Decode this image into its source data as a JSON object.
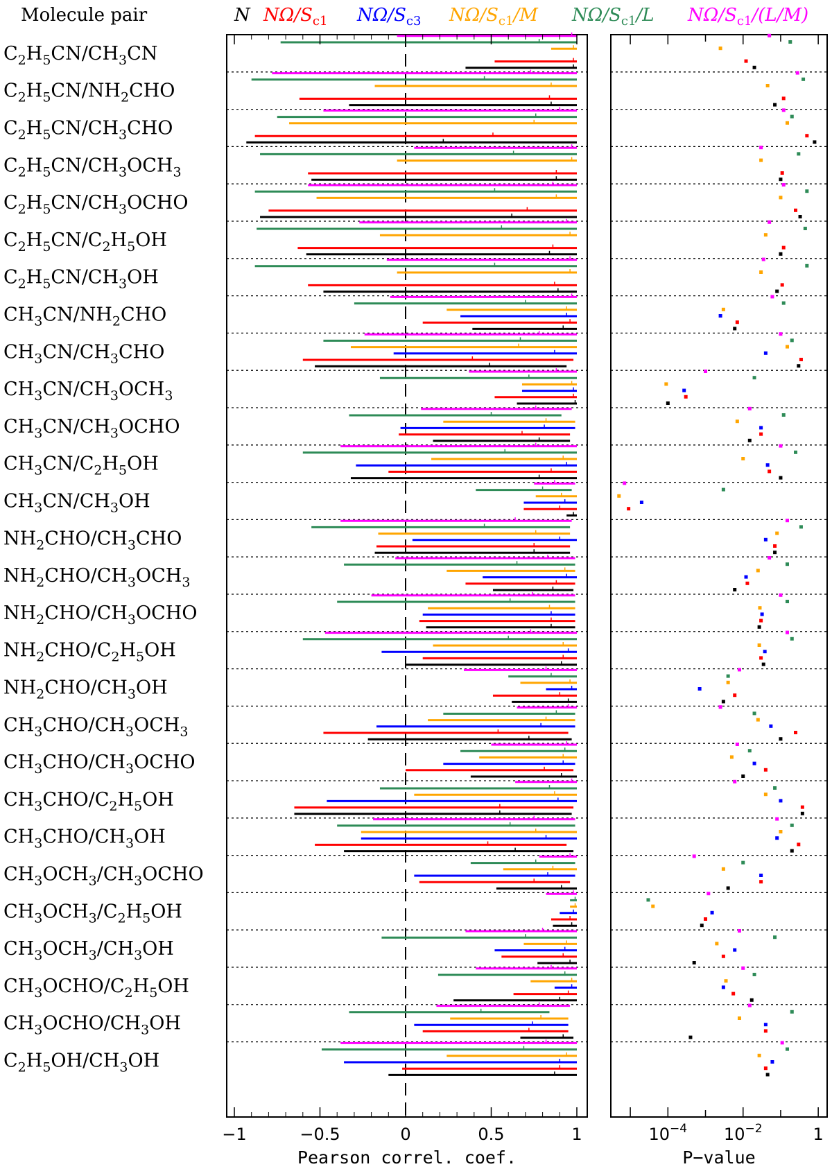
{
  "chart_data": {
    "type": "errorbar",
    "left_header": "Molecule pair",
    "series": [
      {
        "name": "N",
        "color": "#000000"
      },
      {
        "name": "NΩ/Sc1",
        "color": "#ff0000"
      },
      {
        "name": "NΩ/Sc3",
        "color": "#0000ff"
      },
      {
        "name": "NΩ/Sc1/M",
        "color": "#ffa500"
      },
      {
        "name": "NΩ/Sc1/L",
        "color": "#2e8b57"
      },
      {
        "name": "NΩ/Sc1/(L/M)",
        "color": "#ff00ff"
      }
    ],
    "rows": [
      {
        "label": "C2H5CN/CH3CN",
        "r": [
          [
            0.98,
            0.35,
            1
          ],
          [
            0.98,
            0.52,
            1
          ],
          null,
          [
            0.98,
            0.85,
            1
          ],
          [
            0.78,
            -0.73,
            1
          ],
          [
            0.97,
            -0.05,
            1
          ]
        ],
        "p": [
          0.02,
          0.012,
          null,
          0.0025,
          0.18,
          0.05
        ]
      },
      {
        "label": "C2H5CN/NH2CHO",
        "r": [
          [
            0.85,
            -0.33,
            1
          ],
          [
            0.84,
            -0.62,
            1
          ],
          null,
          [
            0.85,
            -0.18,
            1
          ],
          [
            0.46,
            -0.9,
            1
          ],
          [
            0.73,
            -0.78,
            1
          ]
        ],
        "p": [
          0.07,
          0.12,
          null,
          0.045,
          0.4,
          0.28
        ]
      },
      {
        "label": "C2H5CN/CH3CHO",
        "r": [
          [
            0.22,
            -0.93,
            1
          ],
          [
            0.51,
            -0.88,
            1
          ],
          null,
          [
            0.75,
            -0.68,
            1
          ],
          [
            0.76,
            -0.75,
            1
          ],
          [
            0.9,
            -0.48,
            1
          ]
        ],
        "p": [
          0.8,
          0.5,
          null,
          0.15,
          0.2,
          0.12
        ]
      },
      {
        "label": "C2H5CN/CH3OCH3",
        "r": [
          [
            0.88,
            -0.55,
            1
          ],
          [
            0.88,
            -0.57,
            1
          ],
          null,
          [
            0.97,
            -0.05,
            1
          ],
          [
            0.63,
            -0.85,
            1
          ],
          [
            0.97,
            0.05,
            1
          ]
        ],
        "p": [
          0.1,
          0.11,
          null,
          0.03,
          0.3,
          0.03
        ]
      },
      {
        "label": "C2H5CN/CH3OCHO",
        "r": [
          [
            0.62,
            -0.85,
            1
          ],
          [
            0.71,
            -0.8,
            1
          ],
          null,
          [
            0.88,
            -0.52,
            1
          ],
          [
            0.52,
            -0.88,
            1
          ],
          [
            0.86,
            -0.57,
            1
          ]
        ],
        "p": [
          0.33,
          0.25,
          null,
          0.1,
          0.5,
          0.12
        ]
      },
      {
        "label": "C2H5CN/C2H5OH",
        "r": [
          [
            0.84,
            -0.58,
            1
          ],
          [
            0.86,
            -0.63,
            1
          ],
          null,
          [
            0.96,
            -0.15,
            1
          ],
          [
            0.56,
            -0.87,
            1
          ],
          [
            0.94,
            -0.27,
            1
          ]
        ],
        "p": [
          0.1,
          0.12,
          null,
          0.04,
          0.45,
          0.05
        ]
      },
      {
        "label": "C2H5CN/CH3OH",
        "r": [
          [
            0.89,
            -0.48,
            1
          ],
          [
            0.87,
            -0.57,
            1
          ],
          null,
          [
            0.96,
            -0.05,
            1
          ],
          [
            0.52,
            -0.88,
            1
          ],
          [
            0.96,
            -0.11,
            1
          ]
        ],
        "p": [
          0.08,
          0.11,
          null,
          0.03,
          0.5,
          0.035
        ]
      },
      {
        "label": "CH3CN/NH2CHO",
        "r": [
          [
            0.92,
            0.39,
            1
          ],
          [
            0.96,
            0.1,
            1
          ],
          [
            0.94,
            0.32,
            1
          ],
          [
            0.94,
            0.24,
            1
          ],
          [
            0.7,
            -0.3,
            1
          ],
          [
            0.97,
            -0.09,
            1
          ]
        ],
        "p": [
          0.006,
          0.007,
          0.0025,
          0.003,
          0.12,
          0.06
        ]
      },
      {
        "label": "CH3CN/CH3CHO",
        "r": [
          [
            0.49,
            -0.53,
            0.94
          ],
          [
            0.39,
            -0.6,
            0.98
          ],
          [
            0.87,
            -0.07,
            1
          ],
          [
            0.66,
            -0.32,
            1
          ],
          [
            0.67,
            -0.48,
            1
          ],
          [
            0.78,
            -0.24,
            1
          ]
        ],
        "p": [
          0.3,
          0.35,
          0.04,
          0.15,
          0.2,
          0.1
        ]
      },
      {
        "label": "CH3CN/CH3OCH3",
        "r": [
          [
            0.99,
            0.65,
            1
          ],
          [
            0.98,
            0.52,
            1
          ],
          [
            0.98,
            0.68,
            1
          ],
          [
            0.97,
            0.68,
            1
          ],
          [
            0.72,
            -0.15,
            1
          ],
          [
            0.88,
            0.37,
            1
          ]
        ],
        "p": [
          0.0001,
          0.0003,
          0.00027,
          9e-05,
          0.02,
          0.001
        ]
      },
      {
        "label": "CH3CN/CH3OCHO",
        "r": [
          [
            0.78,
            0.16,
            0.96
          ],
          [
            0.68,
            -0.04,
            0.96
          ],
          [
            0.81,
            -0.03,
            0.99
          ],
          [
            0.82,
            0.22,
            0.99
          ],
          [
            0.5,
            -0.33,
            0.91
          ],
          [
            0.76,
            0.09,
            0.97
          ]
        ],
        "p": [
          0.015,
          0.03,
          0.03,
          0.007,
          0.12,
          0.015
        ]
      },
      {
        "label": "CH3CN/C2H5OH",
        "r": [
          [
            0.78,
            -0.32,
            1
          ],
          [
            0.85,
            -0.1,
            1
          ],
          [
            0.94,
            -0.29,
            1
          ],
          [
            0.92,
            0.15,
            1
          ],
          [
            0.58,
            -0.6,
            1
          ],
          [
            0.76,
            -0.38,
            1
          ]
        ],
        "p": [
          0.1,
          0.05,
          0.045,
          0.01,
          0.25,
          0.1
        ]
      },
      {
        "label": "CH3CN/CH3OH",
        "r": [
          [
            0.98,
            0.94,
            1
          ],
          [
            0.9,
            0.69,
            1
          ],
          [
            0.93,
            0.69,
            1
          ],
          [
            0.91,
            0.76,
            1
          ],
          [
            0.8,
            0.41,
            0.97
          ],
          [
            0.87,
            0.75,
            0.99
          ]
        ],
        "p": [
          null,
          9e-06,
          2e-05,
          5e-06,
          0.003,
          7e-06
        ]
      },
      {
        "label": "NH2CHO/CH3CHO",
        "r": [
          [
            0.75,
            -0.18,
            0.96
          ],
          [
            0.75,
            -0.17,
            0.96
          ],
          [
            0.9,
            0.04,
            1
          ],
          [
            0.76,
            -0.16,
            0.96
          ],
          [
            0.46,
            -0.55,
            0.96
          ],
          [
            0.64,
            -0.38,
            0.97
          ]
        ],
        "p": [
          0.07,
          0.07,
          0.04,
          0.08,
          0.35,
          0.15
        ]
      },
      {
        "label": "NH2CHO/CH3OCH3",
        "r": [
          [
            0.86,
            0.51,
            0.98
          ],
          [
            0.88,
            0.35,
            0.99
          ],
          [
            0.94,
            0.45,
            1
          ],
          [
            0.93,
            0.24,
            0.99
          ],
          [
            0.65,
            -0.36,
            0.99
          ],
          [
            0.83,
            -0.06,
            0.99
          ]
        ],
        "p": [
          0.006,
          0.013,
          0.012,
          0.025,
          0.15,
          0.05
        ]
      },
      {
        "label": "NH2CHO/CH3OCHO",
        "r": [
          [
            0.85,
            0.12,
            0.99
          ],
          [
            0.85,
            0.08,
            0.99
          ],
          [
            0.85,
            0.1,
            0.99
          ],
          [
            0.84,
            0.13,
            0.99
          ],
          [
            0.61,
            -0.4,
            0.99
          ],
          [
            0.74,
            -0.2,
            0.99
          ]
        ],
        "p": [
          0.027,
          0.03,
          0.032,
          0.028,
          0.15,
          0.1
        ]
      },
      {
        "label": "NH2CHO/C2H5OH",
        "r": [
          [
            0.91,
            0.0,
            1
          ],
          [
            0.92,
            0.1,
            1
          ],
          [
            0.95,
            -0.14,
            1
          ],
          [
            0.92,
            0.16,
            1
          ],
          [
            0.6,
            -0.6,
            1
          ],
          [
            0.73,
            -0.47,
            1
          ]
        ],
        "p": [
          0.035,
          0.03,
          0.038,
          0.027,
          0.2,
          0.15
        ]
      },
      {
        "label": "NH2CHO/CH3OH",
        "r": [
          [
            0.95,
            0.62,
            1
          ],
          [
            0.9,
            0.51,
            1
          ],
          [
            0.97,
            0.82,
            1
          ],
          [
            0.96,
            0.67,
            1
          ],
          [
            0.85,
            0.6,
            1
          ],
          [
            0.82,
            0.34,
            1
          ]
        ],
        "p": [
          0.003,
          0.006,
          0.0007,
          0.004,
          0.004,
          0.008
        ]
      },
      {
        "label": "CH3CHO/CH3OCH3",
        "r": [
          [
            0.72,
            -0.22,
            0.97
          ],
          [
            0.54,
            -0.48,
            0.95
          ],
          [
            0.79,
            -0.17,
            0.99
          ],
          [
            0.82,
            0.13,
            0.99
          ],
          [
            0.88,
            0.22,
            0.99
          ],
          [
            0.95,
            0.65,
            1
          ]
        ],
        "p": [
          0.1,
          0.25,
          0.055,
          0.025,
          0.02,
          0.0025
        ]
      },
      {
        "label": "CH3CHO/CH3OCHO",
        "r": [
          [
            0.91,
            0.38,
            1
          ],
          [
            0.81,
            0.0,
            0.98
          ],
          [
            0.92,
            0.22,
            0.99
          ],
          [
            0.92,
            0.43,
            1
          ],
          [
            0.93,
            0.32,
            1
          ],
          [
            0.94,
            0.5,
            1
          ]
        ],
        "p": [
          0.01,
          0.04,
          0.02,
          0.005,
          0.015,
          0.007
        ]
      },
      {
        "label": "CH3CHO/C2H5OH",
        "r": [
          [
            0.55,
            -0.65,
            0.97
          ],
          [
            0.55,
            -0.65,
            0.98
          ],
          [
            0.89,
            -0.46,
            1
          ],
          [
            0.87,
            0.05,
            1
          ],
          [
            0.84,
            -0.15,
            1
          ],
          [
            0.97,
            0.64,
            1
          ]
        ],
        "p": [
          0.38,
          0.38,
          0.1,
          0.04,
          0.07,
          0.006
        ]
      },
      {
        "label": "CH3CHO/CH3OH",
        "r": [
          [
            0.64,
            -0.36,
            0.98
          ],
          [
            0.48,
            -0.53,
            0.94
          ],
          [
            0.82,
            -0.26,
            1
          ],
          [
            0.76,
            -0.26,
            1
          ],
          [
            0.61,
            -0.4,
            0.99
          ],
          [
            0.75,
            -0.19,
            0.99
          ]
        ],
        "p": [
          0.2,
          0.3,
          0.08,
          0.1,
          0.2,
          0.08
        ]
      },
      {
        "label": "CH3OCH3/CH3OCHO",
        "r": [
          [
            0.91,
            0.53,
            1
          ],
          [
            0.75,
            0.08,
            0.96
          ],
          [
            0.83,
            0.05,
            0.99
          ],
          [
            0.86,
            0.57,
            1
          ],
          [
            0.76,
            0.38,
            0.99
          ],
          [
            0.96,
            0.78,
            1
          ]
        ],
        "p": [
          0.004,
          0.03,
          0.03,
          0.003,
          0.01,
          0.0005
        ]
      },
      {
        "label": "CH3OCH3/C2H5OH",
        "r": [
          [
            0.97,
            0.86,
            1
          ],
          [
            0.96,
            0.85,
            1
          ],
          [
            0.98,
            0.9,
            1
          ],
          [
            0.99,
            0.96,
            1
          ],
          [
            0.99,
            0.96,
            1
          ],
          [
            0.98,
            0.82,
            1
          ]
        ],
        "p": [
          0.0008,
          0.001,
          0.0015,
          4e-05,
          3e-05,
          0.0012
        ]
      },
      {
        "label": "CH3OCH3/CH3OH",
        "r": [
          [
            0.96,
            0.77,
            1
          ],
          [
            0.92,
            0.56,
            1
          ],
          [
            0.93,
            0.52,
            1
          ],
          [
            0.94,
            0.69,
            1
          ],
          [
            0.7,
            -0.14,
            1
          ],
          [
            0.8,
            0.35,
            1
          ]
        ],
        "p": [
          0.0005,
          0.003,
          0.006,
          0.002,
          0.07,
          0.008
        ]
      },
      {
        "label": "CH3OCHO/C2H5OH",
        "r": [
          [
            0.9,
            0.28,
            1
          ],
          [
            0.95,
            0.63,
            1
          ],
          [
            0.97,
            0.87,
            1
          ],
          [
            0.97,
            0.73,
            1
          ],
          [
            0.93,
            0.19,
            1
          ],
          [
            0.85,
            0.41,
            1
          ]
        ],
        "p": [
          0.017,
          0.0055,
          0.003,
          0.0035,
          0.02,
          0.01
        ]
      },
      {
        "label": "CH3OCHO/CH3OH",
        "r": [
          [
            0.92,
            0.67,
            0.98
          ],
          [
            0.72,
            0.1,
            0.95
          ],
          [
            0.74,
            0.05,
            0.95
          ],
          [
            0.79,
            0.26,
            0.95
          ],
          [
            0.44,
            -0.33,
            0.84
          ],
          [
            0.78,
            0.18,
            0.96
          ]
        ],
        "p": [
          0.0004,
          0.04,
          0.04,
          0.008,
          0.2,
          0.015
        ]
      },
      {
        "label": "C2H5OH/CH3OH",
        "r": [
          [
            0.87,
            -0.1,
            1
          ],
          [
            0.9,
            -0.02,
            1
          ],
          [
            0.9,
            -0.36,
            1
          ],
          [
            0.94,
            0.24,
            1
          ],
          [
            0.69,
            -0.49,
            1
          ],
          [
            0.82,
            -0.38,
            1
          ]
        ],
        "p": [
          0.045,
          0.04,
          0.06,
          0.027,
          0.15,
          0.11
        ]
      }
    ],
    "xaxis_left": {
      "label": "Pearson correl. coef.",
      "range": [
        -1.05,
        1.05
      ],
      "ticks": [
        "−1",
        "−0.5",
        "0",
        "0.5",
        "1"
      ],
      "tick_values": [
        -1,
        -0.5,
        0,
        0.5,
        1
      ]
    },
    "xaxis_right": {
      "label": "P−value",
      "scale": "log",
      "range_log10": [
        -5.5,
        0.2
      ],
      "tick_values_log10": [
        -4,
        -2,
        0
      ],
      "tick_bases": [
        "10",
        "10",
        "1"
      ],
      "tick_exps": [
        "−4",
        "−2",
        ""
      ]
    },
    "row_separators": "dotted"
  }
}
